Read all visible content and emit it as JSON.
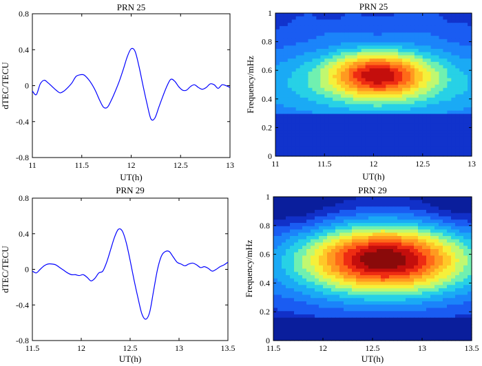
{
  "chart_data": [
    {
      "id": "a",
      "type": "line",
      "title": "PRN 25",
      "xlabel": "UT(h)",
      "ylabel": "dTEC/TECU",
      "xlim": [
        11,
        13
      ],
      "ylim": [
        -0.8,
        0.8
      ],
      "xticks": [
        "11",
        "11.5",
        "12",
        "12.5",
        "13"
      ],
      "xtick_values": [
        11,
        11.5,
        12,
        12.5,
        13
      ],
      "yticks": [
        "-0.8",
        "-0.4",
        "0",
        "0.4",
        "0.8"
      ],
      "ytick_values": [
        -0.8,
        -0.4,
        0,
        0.4,
        0.8
      ],
      "line_color": "#0000ff",
      "series": [
        {
          "name": "dTEC",
          "x": [
            11.0,
            11.04,
            11.08,
            11.12,
            11.16,
            11.2,
            11.24,
            11.28,
            11.32,
            11.36,
            11.4,
            11.44,
            11.48,
            11.52,
            11.56,
            11.6,
            11.64,
            11.68,
            11.72,
            11.76,
            11.8,
            11.84,
            11.88,
            11.92,
            11.96,
            12.0,
            12.04,
            12.08,
            12.12,
            12.16,
            12.2,
            12.24,
            12.28,
            12.32,
            12.36,
            12.4,
            12.44,
            12.48,
            12.52,
            12.56,
            12.6,
            12.64,
            12.68,
            12.72,
            12.76,
            12.8,
            12.84,
            12.88,
            12.92,
            12.96,
            13.0
          ],
          "values": [
            -0.06,
            -0.1,
            0.02,
            0.06,
            0.03,
            -0.01,
            -0.05,
            -0.08,
            -0.06,
            -0.02,
            0.03,
            0.1,
            0.12,
            0.12,
            0.08,
            0.02,
            -0.06,
            -0.16,
            -0.24,
            -0.24,
            -0.16,
            -0.06,
            0.05,
            0.18,
            0.32,
            0.41,
            0.38,
            0.21,
            0.0,
            -0.2,
            -0.37,
            -0.36,
            -0.24,
            -0.12,
            -0.01,
            0.07,
            0.05,
            -0.01,
            -0.05,
            -0.05,
            -0.01,
            0.01,
            -0.02,
            -0.04,
            -0.02,
            0.02,
            0.01,
            -0.03,
            0.01,
            0.0,
            -0.02
          ]
        }
      ]
    },
    {
      "id": "b",
      "type": "heatmap",
      "title": "PRN 25",
      "xlabel": "UT(h)",
      "ylabel": "Frequency/mHz",
      "xlim": [
        11,
        13
      ],
      "ylim": [
        0,
        1
      ],
      "xticks": [
        "11",
        "11.5",
        "12",
        "12.5",
        "13"
      ],
      "xtick_values": [
        11,
        11.5,
        12,
        12.5,
        13
      ],
      "yticks": [
        "0",
        "0.2",
        "0.4",
        "0.6",
        "0.8",
        "1"
      ],
      "ytick_values": [
        0,
        0.2,
        0.4,
        0.6,
        0.8,
        1
      ],
      "levels": [
        "#1133cc",
        "#1a5cf2",
        "#1b84fa",
        "#1aaaf5",
        "#27d1e6",
        "#70f0b0",
        "#c0f870",
        "#f5f03a",
        "#ffc828",
        "#ff9a20",
        "#ff6a18",
        "#ee2c12",
        "#c40e0c"
      ],
      "peaks": [
        {
          "x": 12.05,
          "y": 0.57,
          "sx": 0.35,
          "sy": 0.11,
          "amp": 1.0
        },
        {
          "x": 12.05,
          "y": 0.5,
          "sx": 1.4,
          "sy": 0.23,
          "amp": 0.55
        },
        {
          "x": 11.55,
          "y": 0.95,
          "sx": 0.28,
          "sy": 0.09,
          "amp": 0.12
        },
        {
          "x": 12.55,
          "y": 0.95,
          "sx": 0.28,
          "sy": 0.09,
          "amp": 0.12
        }
      ],
      "floor": {
        "below": 0.3,
        "value": 0.05
      },
      "dips": [
        {
          "x": 11.55,
          "y": 0.98,
          "sx": 0.1,
          "sy": 0.04,
          "depth": 0.12
        },
        {
          "x": 12.8,
          "y": 0.98,
          "sx": 0.08,
          "sy": 0.04,
          "depth": 0.12
        }
      ]
    },
    {
      "id": "c",
      "type": "line",
      "title": "PRN 29",
      "xlabel": "UT(h)",
      "ylabel": "dTEC/TECU",
      "xlim": [
        11.5,
        13.5
      ],
      "ylim": [
        -0.8,
        0.8
      ],
      "xticks": [
        "11.5",
        "12",
        "12.5",
        "13",
        "13.5"
      ],
      "xtick_values": [
        11.5,
        12,
        12.5,
        13,
        13.5
      ],
      "yticks": [
        "-0.8",
        "-0.4",
        "0",
        "0.4",
        "0.8"
      ],
      "ytick_values": [
        -0.8,
        -0.4,
        0,
        0.4,
        0.8
      ],
      "line_color": "#0000ff",
      "series": [
        {
          "name": "dTEC",
          "x": [
            11.5,
            11.54,
            11.58,
            11.62,
            11.66,
            11.7,
            11.74,
            11.78,
            11.82,
            11.86,
            11.9,
            11.94,
            11.98,
            12.02,
            12.06,
            12.1,
            12.14,
            12.18,
            12.22,
            12.26,
            12.3,
            12.34,
            12.38,
            12.42,
            12.46,
            12.5,
            12.54,
            12.58,
            12.62,
            12.66,
            12.7,
            12.74,
            12.78,
            12.82,
            12.86,
            12.9,
            12.94,
            12.98,
            13.02,
            13.06,
            13.1,
            13.14,
            13.18,
            13.22,
            13.26,
            13.3,
            13.34,
            13.38,
            13.42,
            13.46,
            13.5
          ],
          "values": [
            -0.02,
            -0.04,
            0.0,
            0.04,
            0.06,
            0.06,
            0.05,
            0.02,
            -0.01,
            -0.04,
            -0.06,
            -0.06,
            -0.07,
            -0.06,
            -0.09,
            -0.13,
            -0.1,
            -0.04,
            -0.02,
            0.08,
            0.22,
            0.36,
            0.45,
            0.43,
            0.3,
            0.1,
            -0.12,
            -0.32,
            -0.5,
            -0.56,
            -0.48,
            -0.24,
            0.0,
            0.15,
            0.2,
            0.2,
            0.14,
            0.08,
            0.06,
            0.04,
            0.06,
            0.07,
            0.05,
            0.02,
            0.03,
            0.01,
            -0.02,
            0.0,
            0.03,
            0.05,
            0.08
          ]
        }
      ]
    },
    {
      "id": "d",
      "type": "heatmap",
      "title": "PRN 29",
      "xlabel": "UT(h)",
      "ylabel": "Frequency/mHz",
      "xlim": [
        11.5,
        13.5
      ],
      "ylim": [
        0,
        1
      ],
      "xticks": [
        "11.5",
        "12",
        "12.5",
        "13",
        "13.5"
      ],
      "xtick_values": [
        11.5,
        12,
        12.5,
        13,
        13.5
      ],
      "yticks": [
        "0",
        "0.2",
        "0.4",
        "0.6",
        "0.8",
        "1"
      ],
      "ytick_values": [
        0,
        0.2,
        0.4,
        0.6,
        0.8,
        1
      ],
      "levels": [
        "#0a1e9c",
        "#1130c8",
        "#1a5cf2",
        "#1b84fa",
        "#1aaaf5",
        "#27d1e6",
        "#70f0b0",
        "#c0f870",
        "#f5f03a",
        "#ffc828",
        "#ff9a20",
        "#ff6a18",
        "#ee2c12",
        "#c40e0c",
        "#8a0a0a"
      ],
      "peaks": [
        {
          "x": 12.62,
          "y": 0.57,
          "sx": 0.55,
          "sy": 0.16,
          "amp": 1.0
        },
        {
          "x": 12.62,
          "y": 0.5,
          "sx": 1.6,
          "sy": 0.28,
          "amp": 0.35
        }
      ],
      "floor": {
        "below": 0.16,
        "value": 0.02
      },
      "dips": [
        {
          "x": 11.7,
          "y": 0.95,
          "sx": 0.3,
          "sy": 0.12,
          "depth": 0.12
        },
        {
          "x": 13.35,
          "y": 0.95,
          "sx": 0.25,
          "sy": 0.12,
          "depth": 0.1
        }
      ]
    }
  ]
}
